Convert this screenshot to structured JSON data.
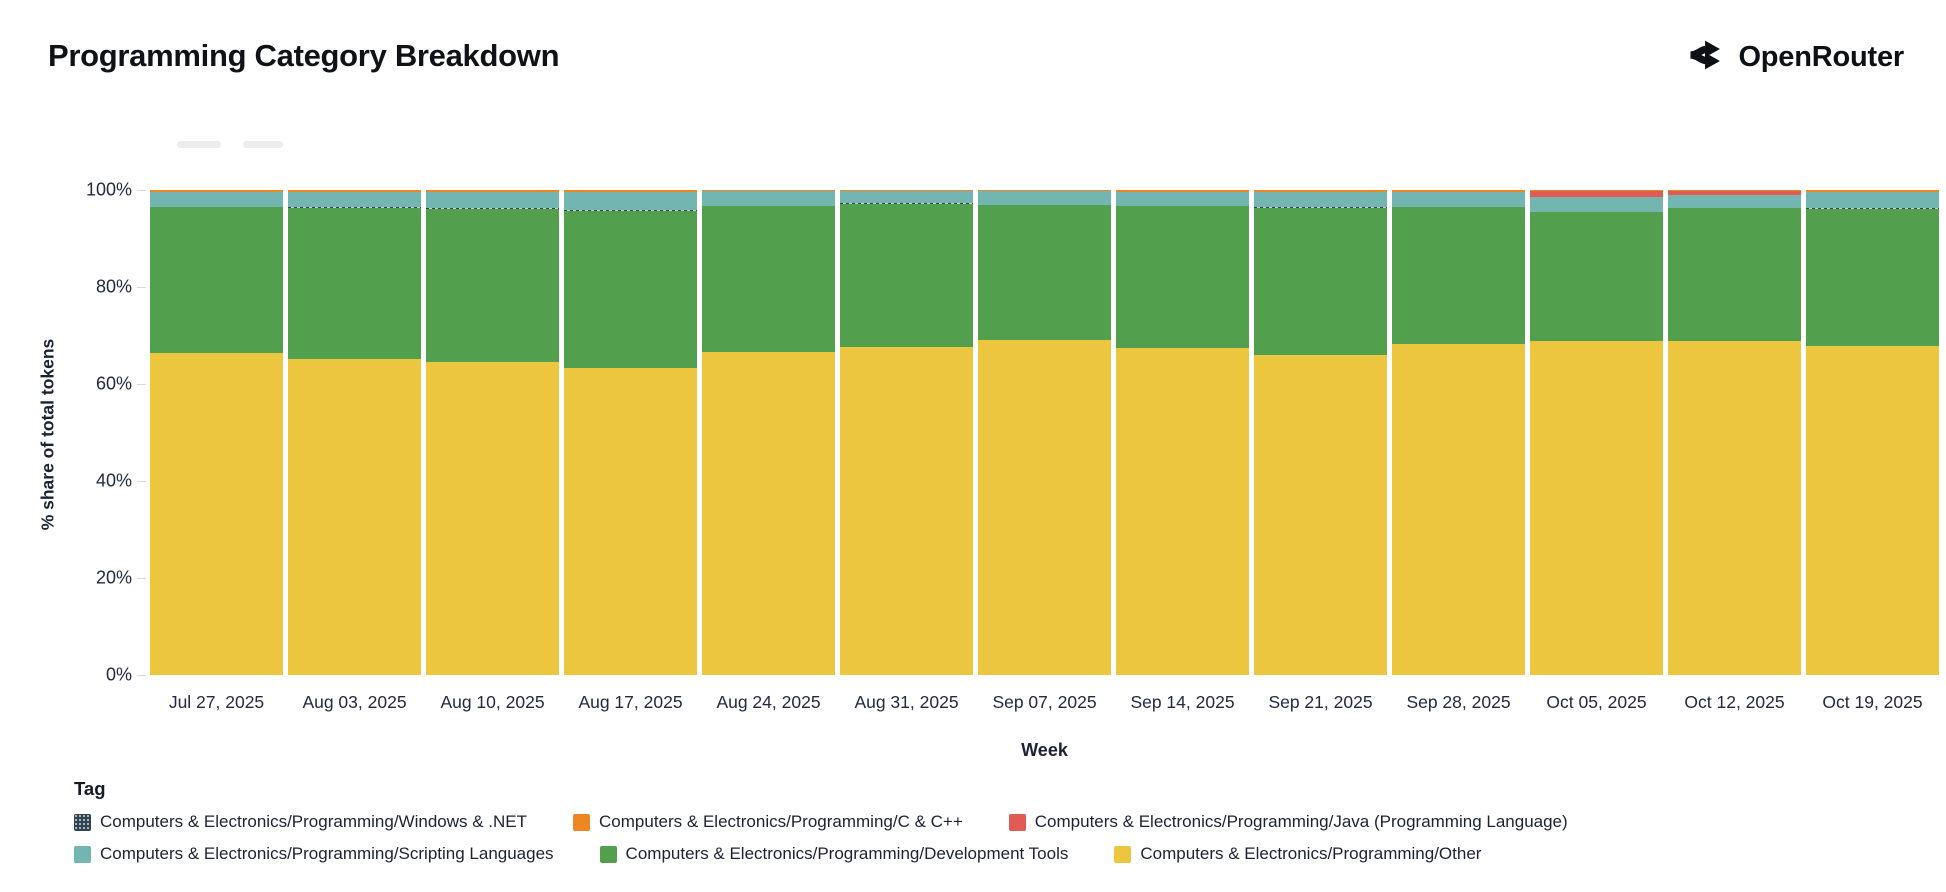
{
  "header": {
    "title": "Programming Category Breakdown"
  },
  "brand": {
    "name": "OpenRouter",
    "icon": "openrouter-fork-icon",
    "color": "#0d1014"
  },
  "axes": {
    "y_title": "% share of total tokens",
    "x_title": "Week",
    "y_ticks": [
      {
        "label": "0%",
        "value": 0
      },
      {
        "label": "20%",
        "value": 20
      },
      {
        "label": "40%",
        "value": 40
      },
      {
        "label": "60%",
        "value": 60
      },
      {
        "label": "80%",
        "value": 80
      },
      {
        "label": "100%",
        "value": 100
      }
    ]
  },
  "chart_data": {
    "type": "bar",
    "variant": "stacked-100",
    "title": "Programming Category Breakdown",
    "xlabel": "Week",
    "ylabel": "% share of total tokens",
    "ylim": [
      0,
      100
    ],
    "grid": false,
    "stack_order": "bottom-to-top",
    "categories": [
      "Jul 27, 2025",
      "Aug 03, 2025",
      "Aug 10, 2025",
      "Aug 17, 2025",
      "Aug 24, 2025",
      "Aug 31, 2025",
      "Sep 07, 2025",
      "Sep 14, 2025",
      "Sep 21, 2025",
      "Sep 28, 2025",
      "Oct 05, 2025",
      "Oct 12, 2025",
      "Oct 19, 2025"
    ],
    "series": [
      {
        "name": "Computers & Electronics/Programming/Other",
        "color": "#ecc63e",
        "values": [
          66.4,
          65.2,
          64.6,
          63.4,
          66.6,
          67.7,
          69.1,
          67.4,
          66.0,
          68.2,
          68.9,
          68.9,
          67.8
        ]
      },
      {
        "name": "Computers & Electronics/Programming/Development Tools",
        "color": "#52a04d",
        "values": [
          30.1,
          31.1,
          31.5,
          32.3,
          30.1,
          29.5,
          27.8,
          29.3,
          30.3,
          28.3,
          26.5,
          27.3,
          28.3
        ]
      },
      {
        "name": "Computers & Electronics/Programming/Windows & .NET",
        "color": "#33404d",
        "pattern": "hairline",
        "values": [
          0.1,
          0.1,
          0.1,
          0.1,
          0.1,
          0.1,
          0.1,
          0.1,
          0.1,
          0.1,
          0.1,
          0.1,
          0.1
        ]
      },
      {
        "name": "Computers & Electronics/Programming/Scripting Languages",
        "color": "#73b5b1",
        "values": [
          3.0,
          3.2,
          3.4,
          3.8,
          2.9,
          2.4,
          2.7,
          2.8,
          3.2,
          3.0,
          3.0,
          2.6,
          3.4
        ]
      },
      {
        "name": "Computers & Electronics/Programming/Java (Programming Language)",
        "color": "#e05b54",
        "values": [
          0,
          0,
          0,
          0,
          0,
          0,
          0,
          0,
          0,
          0,
          1.4,
          1.0,
          0
        ]
      },
      {
        "name": "Computers & Electronics/Programming/C & C++",
        "color": "#ee8722",
        "values": [
          0.4,
          0.4,
          0.4,
          0.4,
          0.3,
          0.3,
          0.3,
          0.4,
          0.4,
          0.4,
          0.1,
          0.1,
          0.4
        ]
      }
    ]
  },
  "legend": {
    "heading": "Tag",
    "rows": [
      [
        {
          "label": "Computers & Electronics/Programming/Windows & .NET",
          "color": "#33404d",
          "pattern": "dots"
        },
        {
          "label": "Computers & Electronics/Programming/C & C++",
          "color": "#ee8722"
        },
        {
          "label": "Computers & Electronics/Programming/Java (Programming Language)",
          "color": "#e05b54"
        }
      ],
      [
        {
          "label": "Computers & Electronics/Programming/Scripting Languages",
          "color": "#73b5b1"
        },
        {
          "label": "Computers & Electronics/Programming/Development Tools",
          "color": "#52a04d"
        },
        {
          "label": "Computers & Electronics/Programming/Other",
          "color": "#ecc63e"
        }
      ]
    ]
  }
}
